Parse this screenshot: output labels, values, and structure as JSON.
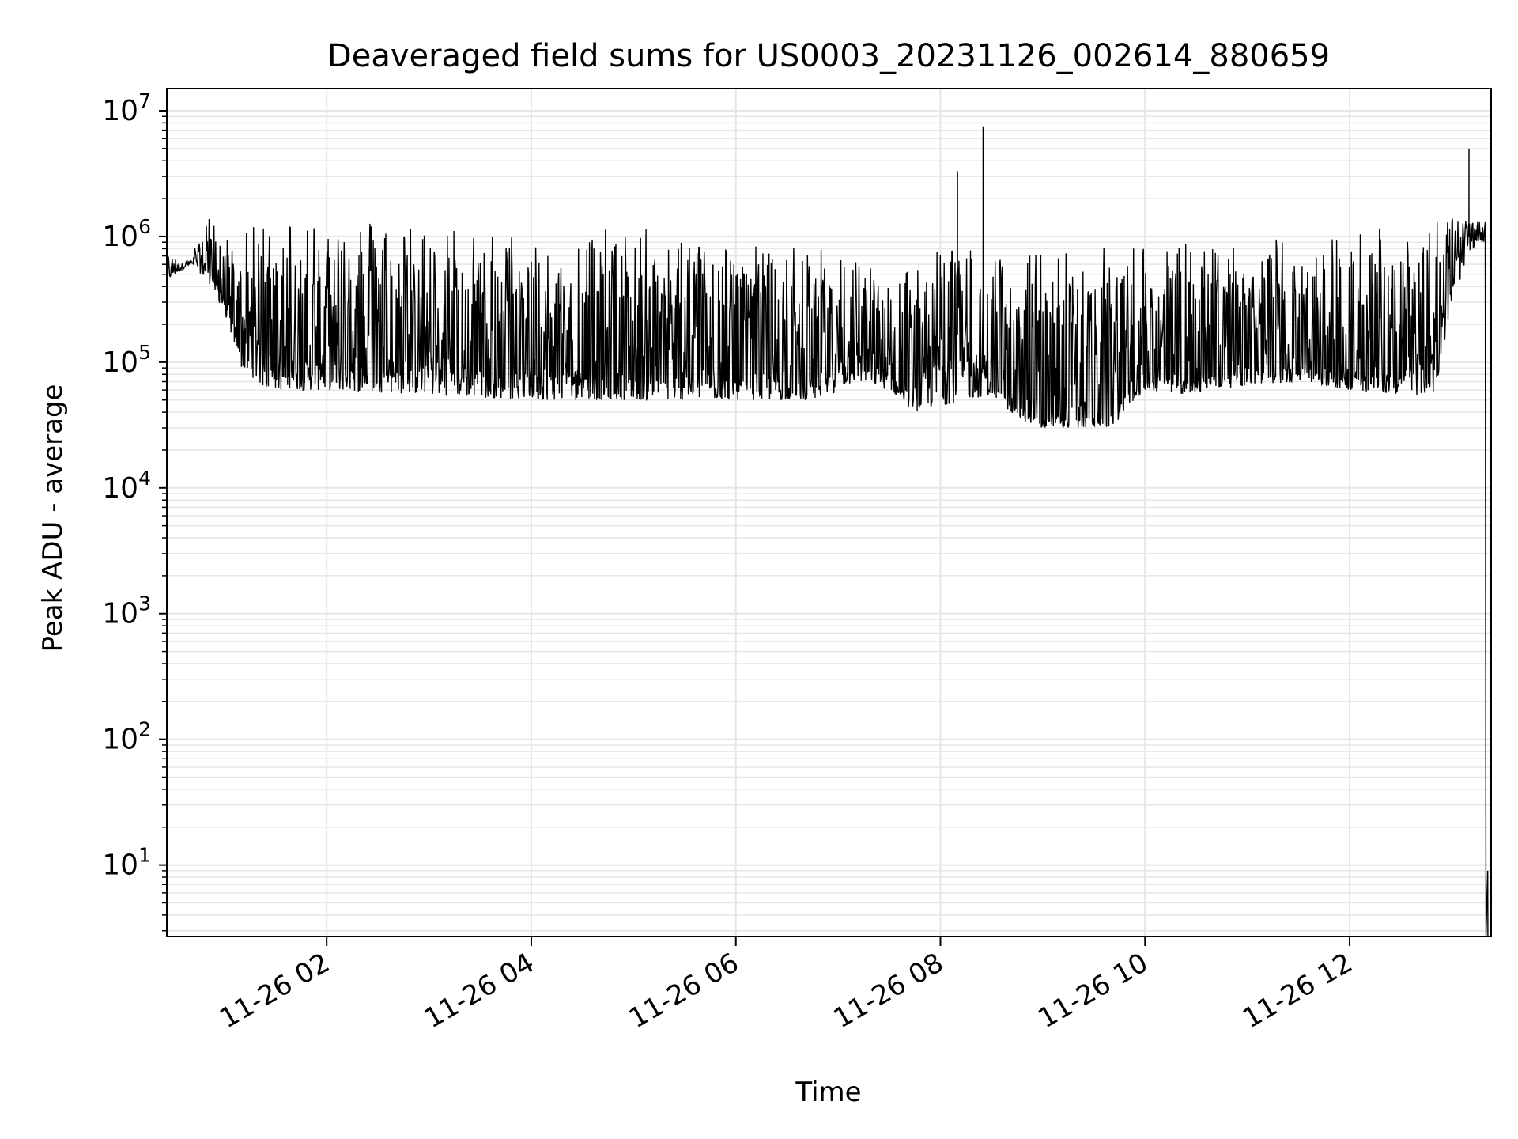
{
  "chart_data": {
    "type": "line",
    "title": "Deaveraged field sums for US0003_20231126_002614_880659",
    "xlabel": "Time",
    "ylabel": "Peak ADU - average",
    "yscale": "log",
    "ylim": [
      2.7,
      15000000
    ],
    "xlim": [
      "2023-11-26 00:26:14",
      "2023-11-26 13:23:00"
    ],
    "x_ticks": [
      {
        "value": "2023-11-26 02:00",
        "label": "11-26 02"
      },
      {
        "value": "2023-11-26 04:00",
        "label": "11-26 04"
      },
      {
        "value": "2023-11-26 06:00",
        "label": "11-26 06"
      },
      {
        "value": "2023-11-26 08:00",
        "label": "11-26 08"
      },
      {
        "value": "2023-11-26 10:00",
        "label": "11-26 10"
      },
      {
        "value": "2023-11-26 12:00",
        "label": "11-26 12"
      }
    ],
    "y_ticks": [
      {
        "value": 10,
        "base": "10",
        "exp": "1"
      },
      {
        "value": 100,
        "base": "10",
        "exp": "2"
      },
      {
        "value": 1000,
        "base": "10",
        "exp": "3"
      },
      {
        "value": 10000,
        "base": "10",
        "exp": "4"
      },
      {
        "value": 100000,
        "base": "10",
        "exp": "5"
      },
      {
        "value": 1000000,
        "base": "10",
        "exp": "6"
      },
      {
        "value": 10000000,
        "base": "10",
        "exp": "7"
      }
    ],
    "grid": true,
    "line_color": "#000000",
    "grid_color": "#e6e6e6",
    "series": [
      {
        "envelope_times": [
          "2023-11-26 00:26",
          "2023-11-26 00:40",
          "2023-11-26 00:50",
          "2023-11-26 01:00",
          "2023-11-26 01:10",
          "2023-11-26 01:25",
          "2023-11-26 02:00",
          "2023-11-26 03:00",
          "2023-11-26 04:00",
          "2023-11-26 05:00",
          "2023-11-26 06:00",
          "2023-11-26 06:50",
          "2023-11-26 07:10",
          "2023-11-26 07:30",
          "2023-11-26 07:45",
          "2023-11-26 08:00",
          "2023-11-26 08:15",
          "2023-11-26 08:30",
          "2023-11-26 08:45",
          "2023-11-26 09:00",
          "2023-11-26 09:20",
          "2023-11-26 09:40",
          "2023-11-26 10:00",
          "2023-11-26 10:20",
          "2023-11-26 11:00",
          "2023-11-26 11:30",
          "2023-11-26 12:00",
          "2023-11-26 12:30",
          "2023-11-26 12:50",
          "2023-11-26 13:00",
          "2023-11-26 13:10",
          "2023-11-26 13:15"
        ],
        "envelope_low": [
          450000,
          600000,
          450000,
          250000,
          90000,
          60000,
          60000,
          55000,
          50000,
          50000,
          50000,
          50000,
          70000,
          60000,
          40000,
          45000,
          50000,
          55000,
          35000,
          30000,
          30000,
          30000,
          60000,
          55000,
          65000,
          70000,
          60000,
          55000,
          55000,
          300000,
          700000,
          900000
        ],
        "envelope_high": [
          700000,
          650000,
          1500000,
          1000000,
          1000000,
          1500000,
          1500000,
          1300000,
          1000000,
          1200000,
          900000,
          800000,
          700000,
          500000,
          600000,
          1000000,
          900000,
          700000,
          700000,
          800000,
          800000,
          850000,
          900000,
          900000,
          950000,
          1000000,
          1100000,
          1500000,
          1500000,
          1400000,
          1300000,
          1300000
        ],
        "baseline": [
          600000,
          620000,
          700000,
          300000,
          150000,
          100000,
          100000,
          90000,
          80000,
          80000,
          75000,
          65000,
          150000,
          80000,
          50000,
          200000,
          150000,
          70000,
          40000,
          35000,
          35000,
          40000,
          80000,
          70000,
          90000,
          90000,
          80000,
          80000,
          150000,
          800000,
          1000000,
          1300000
        ],
        "spikes": [
          {
            "time": "2023-11-26 08:10",
            "value": 3300000
          },
          {
            "time": "2023-11-26 08:25",
            "value": 7500000
          },
          {
            "time": "2023-11-26 13:10",
            "value": 5000000
          }
        ],
        "drop_time": "2023-11-26 13:20",
        "drop_value": 9
      }
    ]
  }
}
